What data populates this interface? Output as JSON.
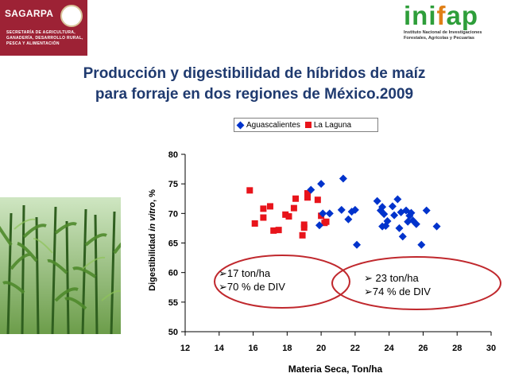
{
  "header": {
    "left_org": "SAGARPA",
    "left_sub": "SECRETARÍA DE AGRICULTURA, GANADERÍA, DESARROLLO RURAL, PESCA Y ALIMENTACIÓN",
    "right_logo_a": "ini",
    "right_logo_b": "f",
    "right_logo_c": "ap",
    "right_line1": "Instituto Nacional de Investigaciones",
    "right_line2": "Forestales, Agrícolas y Pecuarias"
  },
  "slide_title_line1": "Producción y digestibilidad de híbridos de maíz",
  "slide_title_line2": "para forraje en dos regiones de México.2009",
  "colors": {
    "aguascalientes": "#0033cc",
    "laguna": "#e8141b",
    "ellipse": "#c0282d",
    "title": "#1f3a6f"
  },
  "annotations": {
    "left": [
      "➢17 ton/ha",
      "➢70 % de DIV"
    ],
    "right": [
      "➢ 23 ton/ha",
      "➢74 % de DIV"
    ]
  },
  "chart_data": {
    "type": "scatter",
    "title": "",
    "xlabel": "Materia Seca, Ton/ha",
    "ylabel_a": "Digestibilidad ",
    "ylabel_b": "in vitro",
    "ylabel_c": ", %",
    "xlim": [
      12,
      30
    ],
    "ylim": [
      50,
      80
    ],
    "xticks": [
      12,
      14,
      16,
      18,
      20,
      22,
      24,
      26,
      28,
      30
    ],
    "yticks": [
      50,
      55,
      60,
      65,
      70,
      75,
      80
    ],
    "legend": "top",
    "series": [
      {
        "name": "Aguascalientes",
        "marker": "diamond",
        "points": [
          [
            19.4,
            74
          ],
          [
            20.0,
            75
          ],
          [
            21.3,
            75.9
          ],
          [
            20.1,
            70
          ],
          [
            19.9,
            68
          ],
          [
            20.5,
            70
          ],
          [
            21.2,
            70.6
          ],
          [
            21.6,
            69
          ],
          [
            21.8,
            70.3
          ],
          [
            22.0,
            70.6
          ],
          [
            22.1,
            64.7
          ],
          [
            23.3,
            72.1
          ],
          [
            23.5,
            70.5
          ],
          [
            23.6,
            71.1
          ],
          [
            23.7,
            69.9
          ],
          [
            23.8,
            67.9
          ],
          [
            23.9,
            68.7
          ],
          [
            23.6,
            67.8
          ],
          [
            24.2,
            71.2
          ],
          [
            24.3,
            69.7
          ],
          [
            24.5,
            72.4
          ],
          [
            24.6,
            67.5
          ],
          [
            24.8,
            66.1
          ],
          [
            25.0,
            70.5
          ],
          [
            25.2,
            69.6
          ],
          [
            25.3,
            70.1
          ],
          [
            25.4,
            68.8
          ],
          [
            25.6,
            68.2
          ],
          [
            25.1,
            68.6
          ],
          [
            25.9,
            64.7
          ],
          [
            26.2,
            70.5
          ],
          [
            26.8,
            67.8
          ],
          [
            24.7,
            70.2
          ]
        ]
      },
      {
        "name": "La Laguna",
        "marker": "square",
        "points": [
          [
            15.8,
            73.9
          ],
          [
            16.1,
            68.3
          ],
          [
            16.6,
            69.3
          ],
          [
            16.6,
            70.8
          ],
          [
            17.0,
            71.2
          ],
          [
            17.2,
            67.1
          ],
          [
            17.5,
            67.2
          ],
          [
            17.9,
            69.8
          ],
          [
            18.1,
            69.5
          ],
          [
            18.4,
            70.9
          ],
          [
            18.5,
            72.5
          ],
          [
            18.9,
            66.3
          ],
          [
            19.0,
            67.6
          ],
          [
            19.0,
            68.1
          ],
          [
            19.2,
            72.7
          ],
          [
            19.2,
            73.4
          ],
          [
            19.8,
            72.3
          ],
          [
            20.0,
            69.6
          ],
          [
            20.2,
            68.4
          ],
          [
            20.3,
            68.6
          ]
        ]
      }
    ]
  }
}
